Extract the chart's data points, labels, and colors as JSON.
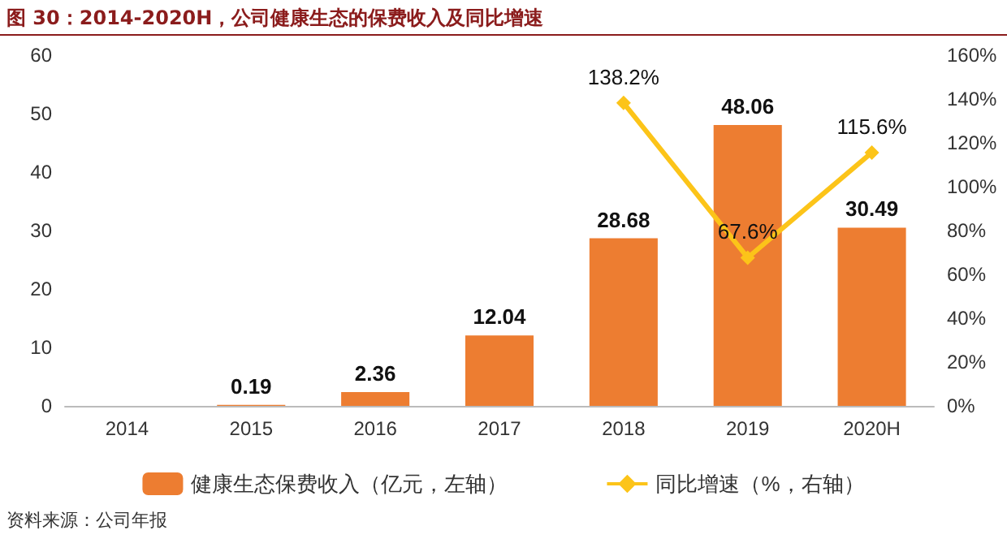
{
  "chart_data": {
    "type": "bar",
    "title": "图 30：2014-2020H，公司健康生态的保费收入及同比增速",
    "categories": [
      "2014",
      "2015",
      "2016",
      "2017",
      "2018",
      "2019",
      "2020H"
    ],
    "series": [
      {
        "name": "健康生态保费收入（亿元，左轴）",
        "color": "#ed7d31",
        "values": [
          null,
          0.19,
          2.36,
          12.04,
          28.68,
          48.06,
          30.49
        ]
      },
      {
        "name": "同比增速（%，右轴）",
        "type": "line",
        "axis": "y2",
        "color": "#fcc419",
        "marker": "diamond",
        "values": [
          null,
          null,
          null,
          null,
          138.2,
          67.6,
          115.6
        ],
        "value_labels": [
          null,
          null,
          null,
          null,
          "138.2%",
          "67.6%",
          "115.6%"
        ]
      }
    ],
    "ylim": [
      0,
      60
    ],
    "yticks": [
      0,
      10,
      20,
      30,
      40,
      50,
      60
    ],
    "y2lim": [
      0,
      160
    ],
    "y2ticks": [
      {
        "value": 0,
        "label": "0%"
      },
      {
        "value": 20,
        "label": "20%"
      },
      {
        "value": 40,
        "label": "40%"
      },
      {
        "value": 60,
        "label": "60%"
      },
      {
        "value": 80,
        "label": "80%"
      },
      {
        "value": 100,
        "label": "100%"
      },
      {
        "value": 120,
        "label": "120%"
      },
      {
        "value": 140,
        "label": "140%"
      },
      {
        "value": 160,
        "label": "160%"
      }
    ],
    "data_labels": true,
    "grid": false,
    "legend": "bottom",
    "annotations": [
      "资料来源：公司年报"
    ]
  }
}
